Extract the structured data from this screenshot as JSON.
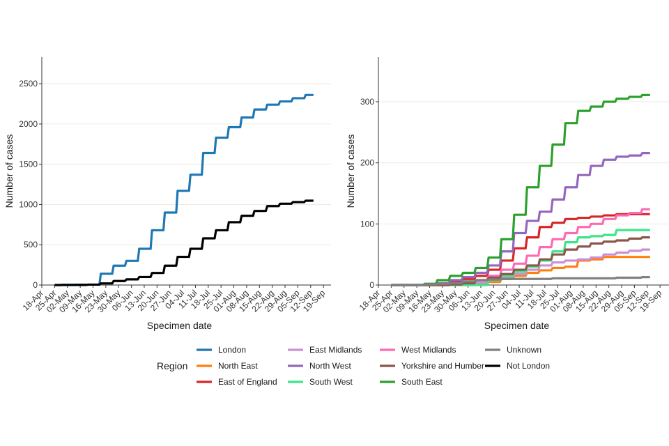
{
  "chart_data": [
    {
      "type": "line",
      "title": "",
      "xlabel": "Specimen date",
      "ylabel": "Number of cases",
      "ylim": [
        0,
        2830
      ],
      "yticks": [
        0,
        500,
        1000,
        1500,
        2000,
        2500
      ],
      "ytick_labels": [
        "0",
        "500",
        "1000",
        "1500",
        "2000",
        "2500"
      ],
      "grid": "horizontal major",
      "x": [
        "18-Apr",
        "25-Apr",
        "02-May",
        "09-May",
        "16-May",
        "23-May",
        "30-May",
        "06-Jun",
        "13-Jun",
        "20-Jun",
        "27-Jun",
        "04-Jul",
        "11-Jul",
        "18-Jul",
        "25-Jul",
        "01-Aug",
        "08-Aug",
        "15-Aug",
        "22-Aug",
        "29-Aug",
        "05-Sep",
        "12-Sep",
        "19-Sep"
      ],
      "series": [
        {
          "name": "London",
          "color": "#1f77b4",
          "values": [
            null,
            0,
            0,
            0,
            5,
            140,
            240,
            300,
            450,
            680,
            900,
            1170,
            1370,
            1640,
            1830,
            1960,
            2080,
            2180,
            2240,
            2280,
            2320,
            2360,
            null
          ]
        },
        {
          "name": "Not London",
          "color": "#000000",
          "values": [
            null,
            0,
            2,
            3,
            5,
            20,
            50,
            70,
            100,
            150,
            240,
            350,
            450,
            580,
            680,
            780,
            860,
            920,
            980,
            1010,
            1030,
            1047,
            null
          ]
        }
      ]
    },
    {
      "type": "line",
      "title": "",
      "xlabel": "Specimen date",
      "ylabel": "Number of cases",
      "ylim": [
        0,
        373
      ],
      "yticks": [
        0,
        100,
        200,
        300
      ],
      "ytick_labels": [
        "0",
        "100",
        "200",
        "300"
      ],
      "grid": "horizontal major",
      "x": [
        "18-Apr",
        "25-Apr",
        "02-May",
        "09-May",
        "16-May",
        "23-May",
        "30-May",
        "06-Jun",
        "13-Jun",
        "20-Jun",
        "27-Jun",
        "04-Jul",
        "11-Jul",
        "18-Jul",
        "25-Jul",
        "01-Aug",
        "08-Aug",
        "15-Aug",
        "22-Aug",
        "29-Aug",
        "05-Sep",
        "12-Sep",
        "19-Sep"
      ],
      "series": [
        {
          "name": "North East",
          "color": "#ff7f0e",
          "values": [
            null,
            0,
            0,
            0,
            0,
            0,
            0,
            0,
            2,
            5,
            10,
            15,
            20,
            24,
            28,
            30,
            40,
            42,
            46,
            46,
            46,
            46,
            null
          ]
        },
        {
          "name": "East of England",
          "color": "#d62728",
          "values": [
            null,
            0,
            0,
            0,
            0,
            2,
            5,
            10,
            15,
            25,
            40,
            60,
            78,
            95,
            102,
            108,
            110,
            112,
            114,
            116,
            116,
            116,
            null
          ]
        },
        {
          "name": "East Midlands",
          "color": "#cc8fd6",
          "values": [
            null,
            0,
            0,
            0,
            0,
            0,
            1,
            2,
            4,
            8,
            12,
            18,
            25,
            32,
            37,
            40,
            42,
            45,
            50,
            53,
            56,
            58,
            null
          ]
        },
        {
          "name": "North West",
          "color": "#9467bd",
          "values": [
            null,
            0,
            0,
            0,
            0,
            3,
            8,
            13,
            20,
            32,
            55,
            85,
            105,
            120,
            140,
            160,
            180,
            195,
            205,
            210,
            212,
            216,
            null
          ]
        },
        {
          "name": "South West",
          "color": "#3de58a",
          "values": [
            null,
            0,
            0,
            0,
            0,
            0,
            0,
            0,
            0,
            8,
            15,
            22,
            30,
            40,
            55,
            70,
            78,
            80,
            82,
            90,
            90,
            90,
            null
          ]
        },
        {
          "name": "West Midlands",
          "color": "#ff69b4",
          "values": [
            null,
            0,
            0,
            0,
            0,
            0,
            2,
            5,
            8,
            15,
            25,
            35,
            48,
            62,
            75,
            85,
            95,
            100,
            108,
            114,
            118,
            124,
            null
          ]
        },
        {
          "name": "Yorkshire and Humber",
          "color": "#8c564b",
          "values": [
            null,
            0,
            0,
            0,
            0,
            0,
            1,
            3,
            8,
            12,
            18,
            25,
            32,
            42,
            50,
            58,
            63,
            68,
            71,
            73,
            76,
            78,
            null
          ]
        },
        {
          "name": "South East",
          "color": "#2ca02c",
          "values": [
            null,
            0,
            0,
            0,
            2,
            8,
            15,
            20,
            28,
            45,
            75,
            115,
            160,
            195,
            230,
            265,
            285,
            292,
            300,
            305,
            308,
            311,
            null
          ]
        },
        {
          "name": "Unknown",
          "color": "#808080",
          "values": [
            null,
            0,
            0,
            0,
            1,
            2,
            3,
            6,
            8,
            9,
            10,
            10,
            10,
            10,
            11,
            11,
            11,
            11,
            11,
            12,
            12,
            13,
            null
          ]
        }
      ]
    }
  ],
  "legend": {
    "title": "Region",
    "placement": "bottom",
    "columns": [
      [
        {
          "name": "London",
          "color": "#1f77b4"
        },
        {
          "name": "North East",
          "color": "#ff7f0e"
        },
        {
          "name": "East of England",
          "color": "#d62728"
        }
      ],
      [
        {
          "name": "East Midlands",
          "color": "#cc8fd6"
        },
        {
          "name": "North West",
          "color": "#9467bd"
        },
        {
          "name": "South West",
          "color": "#3de58a"
        }
      ],
      [
        {
          "name": "West Midlands",
          "color": "#ff69b4"
        },
        {
          "name": "Yorkshire and Humber",
          "color": "#8c564b"
        },
        {
          "name": "South East",
          "color": "#2ca02c"
        }
      ],
      [
        {
          "name": "Unknown",
          "color": "#808080"
        },
        {
          "name": "Not London",
          "color": "#000000"
        }
      ]
    ]
  },
  "colors": {
    "gridline": "#ebebe0",
    "axis": "#333333"
  }
}
